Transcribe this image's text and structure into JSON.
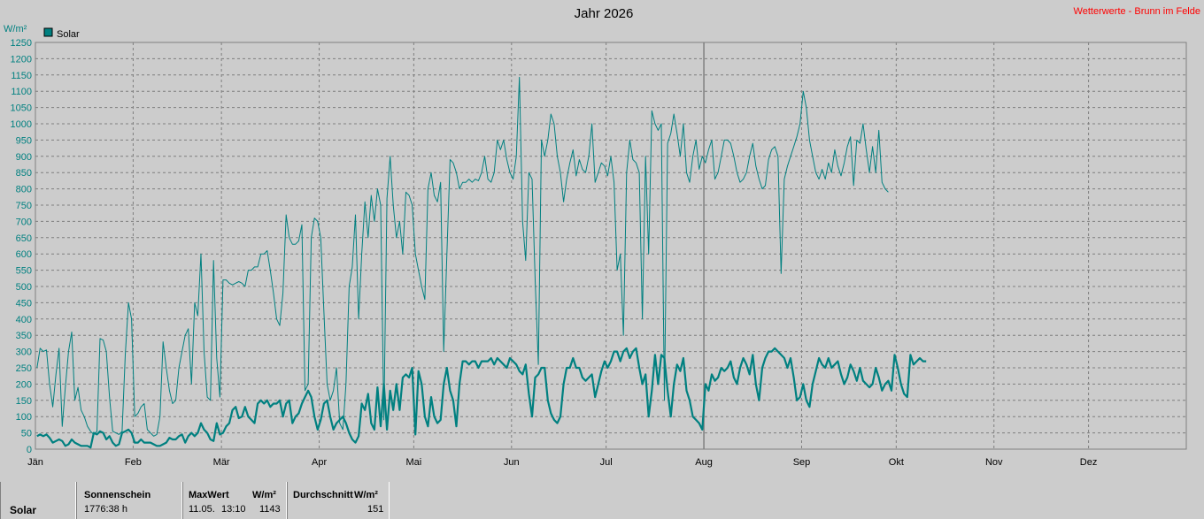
{
  "chart_data": {
    "type": "line",
    "title": "Jahr 2026",
    "site": "Wetterwerte - Brunn im Felde",
    "y_unit": "W/m²",
    "ylim": [
      0,
      1250
    ],
    "y_ticks": [
      0,
      50,
      100,
      150,
      200,
      250,
      300,
      350,
      400,
      450,
      500,
      550,
      600,
      650,
      700,
      750,
      800,
      850,
      900,
      950,
      1000,
      1050,
      1100,
      1150,
      1200,
      1250
    ],
    "months": [
      "Jän",
      "Feb",
      "Mär",
      "Apr",
      "Mai",
      "Jun",
      "Jul",
      "Aug",
      "Sep",
      "Okt",
      "Nov",
      "Dez"
    ],
    "current_date_marker": "Aug",
    "grid": true,
    "legend": {
      "position": "top-left"
    },
    "series": [
      {
        "name": "Solar",
        "kind": "daily_max",
        "color": "#008080",
        "values": [
          250,
          310,
          300,
          305,
          200,
          130,
          230,
          310,
          70,
          190,
          300,
          360,
          150,
          190,
          120,
          100,
          70,
          55,
          45,
          55,
          340,
          335,
          300,
          160,
          55,
          50,
          45,
          55,
          290,
          450,
          400,
          100,
          110,
          130,
          140,
          60,
          50,
          40,
          45,
          100,
          330,
          250,
          180,
          140,
          150,
          250,
          300,
          350,
          370,
          200,
          450,
          410,
          600,
          300,
          160,
          150,
          580,
          280,
          160,
          520,
          520,
          510,
          505,
          510,
          515,
          510,
          500,
          550,
          550,
          560,
          560,
          600,
          600,
          610,
          550,
          480,
          400,
          380,
          480,
          720,
          650,
          630,
          630,
          640,
          690,
          180,
          200,
          650,
          710,
          700,
          650,
          420,
          200,
          150,
          180,
          250,
          80,
          60,
          200,
          500,
          560,
          720,
          400,
          600,
          760,
          650,
          780,
          700,
          800,
          750,
          90,
          770,
          900,
          750,
          650,
          700,
          600,
          790,
          780,
          750,
          600,
          550,
          500,
          460,
          800,
          850,
          780,
          760,
          820,
          300,
          600,
          890,
          880,
          850,
          800,
          820,
          820,
          830,
          820,
          830,
          825,
          850,
          900,
          830,
          820,
          850,
          950,
          920,
          950,
          890,
          850,
          830,
          900,
          1143,
          700,
          580,
          850,
          830,
          520,
          260,
          950,
          900,
          950,
          1030,
          1000,
          900,
          850,
          760,
          830,
          880,
          920,
          840,
          890,
          860,
          850,
          900,
          1000,
          820,
          850,
          880,
          870,
          840,
          900,
          820,
          550,
          600,
          350,
          850,
          950,
          890,
          880,
          850,
          400,
          900,
          600,
          1040,
          1000,
          980,
          1000,
          150,
          940,
          970,
          1030,
          970,
          900,
          1000,
          850,
          820,
          900,
          950,
          860,
          900,
          880,
          920,
          950,
          830,
          850,
          900,
          950,
          950,
          940,
          900,
          850,
          820,
          830,
          850,
          900,
          940,
          870,
          830,
          800,
          810,
          890,
          920,
          930,
          900,
          540,
          830,
          870,
          900,
          930,
          960,
          1000,
          1100,
          1050,
          950,
          900,
          850,
          830,
          860,
          830,
          880,
          850,
          920,
          870,
          840,
          880,
          930,
          960,
          810,
          950,
          940,
          1000,
          920,
          850,
          930,
          850,
          980,
          820,
          800,
          790
        ],
        "fill": false
      },
      {
        "name": "Solar",
        "kind": "daily_avg",
        "color": "#008080",
        "values": [
          40,
          45,
          40,
          45,
          35,
          20,
          25,
          30,
          25,
          10,
          15,
          30,
          20,
          15,
          10,
          10,
          10,
          5,
          50,
          45,
          55,
          50,
          30,
          40,
          20,
          10,
          15,
          50,
          55,
          60,
          50,
          20,
          20,
          30,
          20,
          20,
          20,
          15,
          10,
          10,
          15,
          20,
          35,
          30,
          30,
          40,
          45,
          20,
          40,
          50,
          40,
          50,
          80,
          60,
          50,
          30,
          25,
          80,
          45,
          50,
          70,
          80,
          120,
          130,
          95,
          100,
          130,
          100,
          90,
          80,
          140,
          150,
          140,
          150,
          130,
          140,
          140,
          150,
          100,
          140,
          150,
          80,
          100,
          110,
          140,
          160,
          180,
          160,
          100,
          60,
          90,
          140,
          150,
          100,
          60,
          80,
          90,
          100,
          80,
          50,
          30,
          20,
          40,
          140,
          120,
          170,
          80,
          60,
          190,
          70,
          200,
          60,
          180,
          120,
          200,
          120,
          220,
          230,
          220,
          250,
          45,
          240,
          200,
          100,
          70,
          160,
          100,
          80,
          90,
          200,
          250,
          180,
          150,
          70,
          200,
          270,
          270,
          260,
          270,
          270,
          250,
          270,
          270,
          270,
          280,
          260,
          280,
          270,
          260,
          250,
          280,
          270,
          260,
          240,
          230,
          260,
          170,
          100,
          220,
          230,
          250,
          250,
          150,
          110,
          90,
          80,
          100,
          200,
          250,
          250,
          280,
          250,
          250,
          220,
          210,
          220,
          230,
          160,
          200,
          240,
          270,
          250,
          270,
          300,
          300,
          270,
          300,
          310,
          280,
          300,
          310,
          250,
          200,
          230,
          100,
          180,
          290,
          200,
          290,
          280,
          180,
          100,
          200,
          260,
          240,
          280,
          180,
          150,
          100,
          90,
          80,
          60,
          200,
          180,
          230,
          210,
          220,
          250,
          240,
          250,
          270,
          220,
          200,
          250,
          280,
          260,
          230,
          290,
          200,
          150,
          250,
          280,
          300,
          300,
          310,
          300,
          290,
          280,
          250,
          280,
          220,
          150,
          160,
          200,
          150,
          130,
          200,
          240,
          280,
          260,
          250,
          280,
          250,
          260,
          270,
          230,
          200,
          220,
          260,
          240,
          210,
          250,
          210,
          200,
          190,
          200,
          250,
          220,
          180,
          200,
          210,
          180,
          290,
          250,
          200,
          170,
          160,
          290,
          260,
          270,
          280,
          270,
          270
        ]
      }
    ]
  },
  "stats": {
    "row_label": "Solar",
    "sunshine": {
      "header": "Sonnenschein",
      "value": "1776:38 h"
    },
    "max": {
      "header": "MaxWert",
      "unit": "W/m²",
      "date": "11.05.",
      "time": "13:10",
      "value": "1143"
    },
    "avg": {
      "header": "Durchschnitt",
      "unit": "W/m²",
      "value": "151"
    }
  }
}
